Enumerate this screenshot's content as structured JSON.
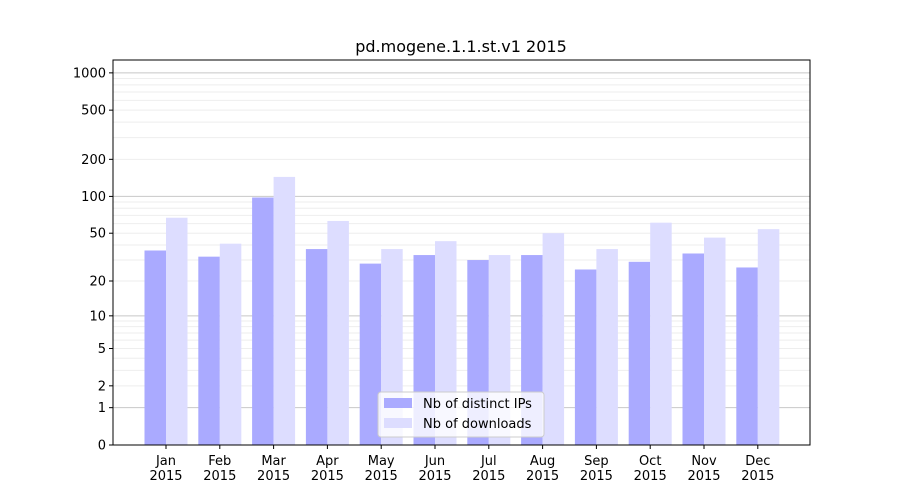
{
  "chart_data": {
    "type": "bar",
    "title": "pd.mogene.1.1.st.v1 2015",
    "xlabel": "",
    "ylabel": "",
    "yscale": "log10(v+1)",
    "ylim": [
      0,
      1270
    ],
    "yticks": [
      0,
      1,
      2,
      5,
      10,
      20,
      50,
      100,
      200,
      500,
      1000
    ],
    "categories": [
      "Jan\n2015",
      "Feb\n2015",
      "Mar\n2015",
      "Apr\n2015",
      "May\n2015",
      "Jun\n2015",
      "Jul\n2015",
      "Aug\n2015",
      "Sep\n2015",
      "Oct\n2015",
      "Nov\n2015",
      "Dec\n2015"
    ],
    "series": [
      {
        "name": "Nb of distinct IPs",
        "color": "#aaaaff",
        "values": [
          36,
          32,
          98,
          37,
          28,
          33,
          30,
          33,
          25,
          29,
          34,
          26
        ]
      },
      {
        "name": "Nb of downloads",
        "color": "#ddddff",
        "values": [
          67,
          41,
          144,
          63,
          37,
          43,
          33,
          50,
          37,
          61,
          46,
          54
        ]
      }
    ],
    "grid": true,
    "legend": "bottom-center"
  }
}
